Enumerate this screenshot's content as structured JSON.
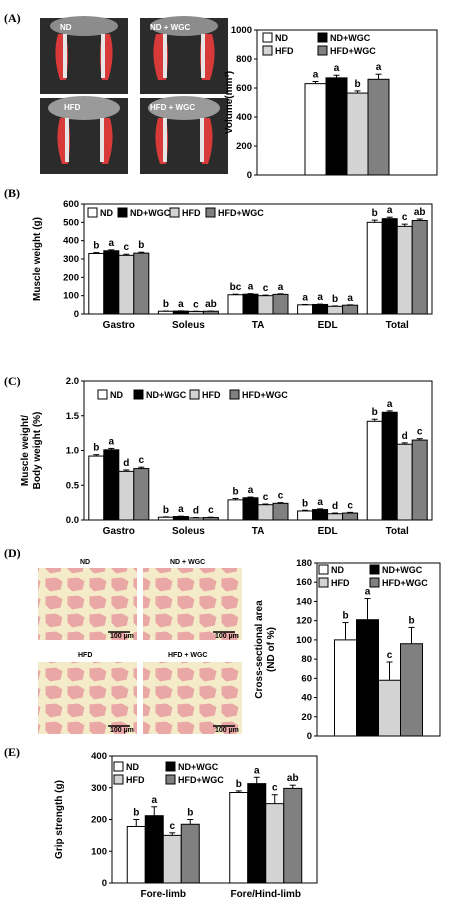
{
  "panels": {
    "A": "(A)",
    "B": "(B)",
    "C": "(C)",
    "D": "(D)",
    "E": "(E)"
  },
  "images": {
    "A_labels": [
      "ND",
      "ND + WGC",
      "HFD",
      "HFD + WGC"
    ],
    "D_labels": [
      "ND",
      "ND + WGC",
      "HFD",
      "HFD + WGC"
    ],
    "scale_bar": "100 µm"
  },
  "colors": {
    "ND": "#ffffff",
    "ND+WGC": "#000000",
    "HFD": "#d3d3d3",
    "HFD+WGC": "#808080",
    "muscle_red": "#d83a3a",
    "histo_pink": "#e9a7a5",
    "histo_bg": "#f4ecc8"
  },
  "chart_data": [
    {
      "id": "A",
      "type": "bar",
      "categories": [
        ""
      ],
      "series": [
        {
          "name": "ND",
          "values": [
            630
          ],
          "err": [
            15
          ],
          "sig": [
            "a"
          ]
        },
        {
          "name": "ND+WGC",
          "values": [
            670
          ],
          "err": [
            18
          ],
          "sig": [
            "a"
          ]
        },
        {
          "name": "HFD",
          "values": [
            565
          ],
          "err": [
            15
          ],
          "sig": [
            "b"
          ]
        },
        {
          "name": "HFD+WGC",
          "values": [
            660
          ],
          "err": [
            35
          ],
          "sig": [
            "a"
          ]
        }
      ],
      "legend": [
        "ND",
        "ND+WGC",
        "HFD",
        "HFD+WGC"
      ],
      "ylabel": "Volume(mm³)",
      "ylim": [
        0,
        1000
      ],
      "yticks": [
        "0",
        "200",
        "400",
        "600",
        "800",
        "1000"
      ]
    },
    {
      "id": "B",
      "type": "bar",
      "categories": [
        "Gastro",
        "Soleus",
        "TA",
        "EDL",
        "Total"
      ],
      "series": [
        {
          "name": "ND",
          "values": [
            330,
            15,
            105,
            50,
            500
          ],
          "err": [
            5,
            1,
            3,
            2,
            12
          ],
          "sig": [
            "b",
            "b",
            "bc",
            "a",
            "b"
          ]
        },
        {
          "name": "ND+WGC",
          "values": [
            345,
            16,
            108,
            52,
            520
          ],
          "err": [
            5,
            1,
            3,
            2,
            8
          ],
          "sig": [
            "a",
            "a",
            "a",
            "a",
            "a"
          ]
        },
        {
          "name": "HFD",
          "values": [
            320,
            14,
            100,
            42,
            478
          ],
          "err": [
            6,
            1,
            3,
            2,
            12
          ],
          "sig": [
            "c",
            "c",
            "c",
            "b",
            "c"
          ]
        },
        {
          "name": "HFD+WGC",
          "values": [
            332,
            15,
            107,
            48,
            510
          ],
          "err": [
            5,
            1,
            3,
            2,
            8
          ],
          "sig": [
            "b",
            "ab",
            "a",
            "a",
            "ab"
          ]
        }
      ],
      "legend": [
        "ND",
        "ND+WGC",
        "HFD",
        "HFD+WGC"
      ],
      "ylabel": "Muscle weight (g)",
      "ylim": [
        0,
        600
      ],
      "yticks": [
        "0",
        "100",
        "200",
        "300",
        "400",
        "500",
        "600"
      ]
    },
    {
      "id": "C",
      "type": "bar",
      "categories": [
        "Gastro",
        "Soleus",
        "TA",
        "EDL",
        "Total"
      ],
      "series": [
        {
          "name": "ND",
          "values": [
            0.92,
            0.04,
            0.29,
            0.13,
            1.42
          ],
          "err": [
            0.02,
            0.005,
            0.02,
            0.01,
            0.03
          ],
          "sig": [
            "b",
            "b",
            "b",
            "b",
            "b"
          ]
        },
        {
          "name": "ND+WGC",
          "values": [
            1.01,
            0.05,
            0.32,
            0.15,
            1.55
          ],
          "err": [
            0.02,
            0.005,
            0.01,
            0.01,
            0.02
          ],
          "sig": [
            "a",
            "a",
            "a",
            "a",
            "a"
          ]
        },
        {
          "name": "HFD",
          "values": [
            0.7,
            0.03,
            0.22,
            0.09,
            1.09
          ],
          "err": [
            0.02,
            0.005,
            0.01,
            0.01,
            0.02
          ],
          "sig": [
            "d",
            "d",
            "c",
            "d",
            "d"
          ]
        },
        {
          "name": "HFD+WGC",
          "values": [
            0.74,
            0.035,
            0.24,
            0.1,
            1.15
          ],
          "err": [
            0.02,
            0.005,
            0.01,
            0.01,
            0.02
          ],
          "sig": [
            "c",
            "c",
            "c",
            "c",
            "c"
          ]
        }
      ],
      "legend": [
        "ND",
        "ND+WGC",
        "HFD",
        "HFD+WGC"
      ],
      "ylabel_lines": [
        "Muscle weight/",
        "Body weight (%)"
      ],
      "ylim": [
        0,
        2.0
      ],
      "yticks": [
        "0.0",
        "0.5",
        "1.0",
        "1.5",
        "2.0"
      ]
    },
    {
      "id": "D",
      "type": "bar",
      "categories": [
        ""
      ],
      "series": [
        {
          "name": "ND",
          "values": [
            100
          ],
          "err": [
            18
          ],
          "sig": [
            "b"
          ]
        },
        {
          "name": "ND+WGC",
          "values": [
            121
          ],
          "err": [
            22
          ],
          "sig": [
            "a"
          ]
        },
        {
          "name": "HFD",
          "values": [
            58
          ],
          "err": [
            19
          ],
          "sig": [
            "c"
          ]
        },
        {
          "name": "HFD+WGC",
          "values": [
            96
          ],
          "err": [
            17
          ],
          "sig": [
            "b"
          ]
        }
      ],
      "legend": [
        "ND",
        "ND+WGC",
        "HFD",
        "HFD+WGC"
      ],
      "ylabel_lines": [
        "Cross-sectional area",
        "(ND of %)"
      ],
      "ylim": [
        0,
        180
      ],
      "yticks": [
        "0",
        "20",
        "40",
        "60",
        "80",
        "100",
        "120",
        "140",
        "160",
        "180"
      ]
    },
    {
      "id": "E",
      "type": "bar",
      "categories": [
        "Fore-limb",
        "Fore/Hind-limb"
      ],
      "series": [
        {
          "name": "ND",
          "values": [
            178,
            285
          ],
          "err": [
            22,
            5
          ],
          "sig": [
            "b",
            "b"
          ]
        },
        {
          "name": "ND+WGC",
          "values": [
            212,
            313
          ],
          "err": [
            28,
            20
          ],
          "sig": [
            "a",
            "a"
          ]
        },
        {
          "name": "HFD",
          "values": [
            150,
            250
          ],
          "err": [
            8,
            28
          ],
          "sig": [
            "c",
            "c"
          ]
        },
        {
          "name": "HFD+WGC",
          "values": [
            185,
            298
          ],
          "err": [
            15,
            10
          ],
          "sig": [
            "b",
            "ab"
          ]
        }
      ],
      "legend": [
        "ND",
        "ND+WGC",
        "HFD",
        "HFD+WGC"
      ],
      "ylabel": "Grip strength (g)",
      "ylim": [
        0,
        400
      ],
      "yticks": [
        "0",
        "100",
        "200",
        "300",
        "400"
      ]
    }
  ]
}
